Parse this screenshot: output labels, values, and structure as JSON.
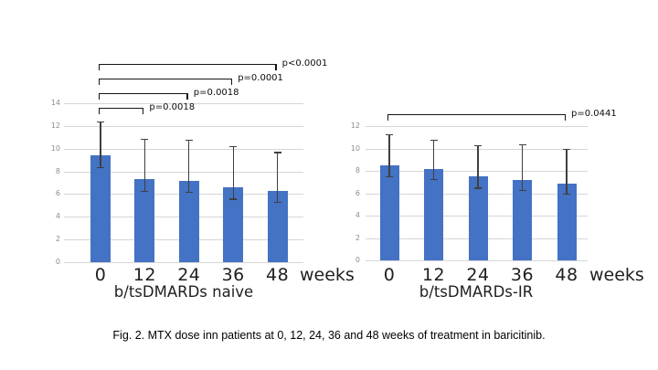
{
  "figure": {
    "caption": "Fig. 2. MTX dose inn patients at 0, 12, 24, 36 and 48 weeks of treatment in baricitinib."
  },
  "colors": {
    "bar_fill": "#4472c4",
    "gridline": "#d6d6d6",
    "error_bar": "#3f3f3f",
    "axis_tick_text": "#8d8d8d",
    "label_text": "#1f1f1f"
  },
  "chart_data": [
    {
      "type": "bar",
      "title": "b/tsDMARDs naive",
      "categories": [
        "0",
        "12",
        "24",
        "36",
        "48"
      ],
      "x_unit": "weeks",
      "values": [
        9.4,
        7.3,
        7.2,
        6.6,
        6.3
      ],
      "error_low": [
        8.4,
        6.3,
        6.2,
        5.6,
        5.3
      ],
      "error_high": [
        12.4,
        10.9,
        10.8,
        10.2,
        9.7
      ],
      "ylim": [
        0,
        14
      ],
      "ytick_step": 2,
      "grid": true,
      "legend": "none",
      "significance": [
        {
          "from": 0,
          "to": 4,
          "label": "p<0.0001"
        },
        {
          "from": 0,
          "to": 3,
          "label": "p=0.0001"
        },
        {
          "from": 0,
          "to": 2,
          "label": "p=0.0018"
        },
        {
          "from": 0,
          "to": 1,
          "label": "p=0.0018"
        }
      ]
    },
    {
      "type": "bar",
      "title": "b/tsDMARDs-IR",
      "categories": [
        "0",
        "12",
        "24",
        "36",
        "48"
      ],
      "x_unit": "weeks",
      "values": [
        8.5,
        8.2,
        7.5,
        7.2,
        6.9
      ],
      "error_low": [
        7.5,
        7.3,
        6.5,
        6.3,
        6.0
      ],
      "error_high": [
        11.3,
        10.8,
        10.3,
        10.4,
        10.0
      ],
      "ylim": [
        0,
        12
      ],
      "ytick_step": 2,
      "grid": true,
      "legend": "none",
      "significance": [
        {
          "from": 0,
          "to": 4,
          "label": "p=0.0441"
        }
      ]
    }
  ]
}
